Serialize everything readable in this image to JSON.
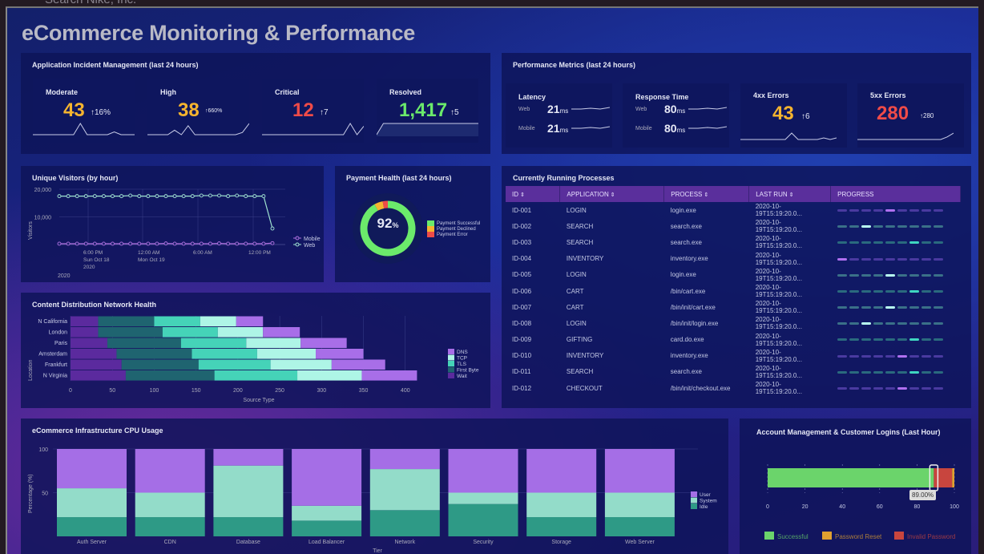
{
  "topbar": {
    "search_text": "Search Nike, Inc."
  },
  "title": "eCommerce Monitoring & Performance",
  "incidents": {
    "title": "Application Incident Management (last 24 hours)",
    "cards": [
      {
        "label": "Moderate",
        "value": "43",
        "delta": "↑16%",
        "color": "#f5b42f",
        "spark": [
          0,
          0,
          0,
          0,
          0,
          0,
          0,
          4,
          0,
          0,
          0,
          0,
          1,
          0,
          0,
          0
        ]
      },
      {
        "label": "High",
        "value": "38",
        "delta": "↑660%",
        "color": "#f5b42f",
        "spark": [
          0,
          0,
          0,
          0,
          2,
          0,
          4,
          0,
          0,
          0,
          0,
          0,
          0,
          0,
          1,
          5
        ]
      },
      {
        "label": "Critical",
        "value": "12",
        "delta": "↑7",
        "color": "#ef4b48",
        "spark": [
          0,
          0,
          0,
          0,
          0,
          0,
          0,
          0,
          0,
          0,
          0,
          0,
          0,
          4,
          0,
          3
        ]
      },
      {
        "label": "Resolved",
        "value": "1,417",
        "delta": "↑5",
        "color": "#6bea6b",
        "spark": [
          0,
          4,
          4,
          4,
          4,
          4,
          4,
          4,
          4,
          4,
          4,
          4,
          4,
          4,
          4,
          4
        ]
      }
    ]
  },
  "performance": {
    "title": "Performance Metrics (last 24 hours)",
    "latency": {
      "label": "Latency",
      "rows": [
        {
          "name": "Web",
          "value": "21",
          "unit": "ms"
        },
        {
          "name": "Mobile",
          "value": "21",
          "unit": "ms"
        }
      ]
    },
    "response": {
      "label": "Response Time",
      "rows": [
        {
          "name": "Web",
          "value": "80",
          "unit": "ms"
        },
        {
          "name": "Mobile",
          "value": "80",
          "unit": "ms"
        }
      ]
    },
    "errors": [
      {
        "label": "4xx Errors",
        "value": "43",
        "delta": "↑6",
        "color": "#f5b42f",
        "spark": [
          0,
          0,
          0,
          0,
          0,
          0,
          0,
          0,
          4,
          0,
          0,
          0,
          0,
          1,
          0,
          1
        ]
      },
      {
        "label": "5xx Errors",
        "value": "280",
        "delta": "↑280",
        "color": "#ef4b48",
        "spark": [
          0,
          0,
          0,
          0,
          0,
          0,
          0,
          0,
          0,
          0,
          0,
          0,
          0,
          0,
          2,
          5
        ]
      }
    ]
  },
  "visitors": {
    "title": "Unique Visitors (by hour)",
    "chart_data": {
      "type": "line",
      "ylabel": "Visitors",
      "ylim": [
        0,
        20000
      ],
      "yticks": [
        "20,000",
        "10,000"
      ],
      "xticks": [
        {
          "l1": "6:00 PM",
          "l2": "Sun Oct 18",
          "l3": "2020"
        },
        {
          "l1": "12:00 AM",
          "l2": "Mon Oct 19",
          "l3": ""
        },
        {
          "l1": "6:00 AM",
          "l2": "",
          "l3": ""
        },
        {
          "l1": "12:00 PM",
          "l2": "",
          "l3": ""
        }
      ],
      "year_label": "2020",
      "series": [
        {
          "name": "Mobile",
          "color": "#b070e0",
          "values": [
            300,
            300,
            300,
            300,
            300,
            300,
            300,
            300,
            300,
            300,
            300,
            300,
            400,
            300,
            300,
            300,
            300,
            300,
            400,
            300,
            300,
            300,
            300,
            300,
            500
          ]
        },
        {
          "name": "Web",
          "color": "#9fe3d0",
          "values": [
            17500,
            17500,
            17500,
            17500,
            17500,
            17500,
            17500,
            17500,
            17700,
            17500,
            17500,
            17500,
            17500,
            17500,
            17500,
            17500,
            17700,
            17700,
            17700,
            17500,
            17700,
            17500,
            17500,
            17500,
            5800
          ]
        }
      ]
    }
  },
  "payment": {
    "title": "Payment Health (last 24 hours)",
    "center": "92",
    "center_unit": "%",
    "chart_data": {
      "type": "pie",
      "slices": [
        {
          "name": "Payment Successful",
          "value": 92,
          "color": "#6bea6b"
        },
        {
          "name": "Payment Declined",
          "value": 5,
          "color": "#f5b42f"
        },
        {
          "name": "Payment Error",
          "value": 3,
          "color": "#ef4b48"
        }
      ]
    }
  },
  "cdn": {
    "title": "Content Distribution Network Health",
    "chart_data": {
      "type": "bar",
      "orientation": "horizontal",
      "stacked": true,
      "xlabel": "Source Type",
      "ylabel": "Location",
      "xlim": [
        0,
        450
      ],
      "xticks": [
        0,
        50,
        100,
        150,
        200,
        250,
        300,
        350,
        400
      ],
      "categories": [
        "N California",
        "London",
        "Paris",
        "Amsterdam",
        "Frankfurt",
        "N Virginia"
      ],
      "series": [
        {
          "name": "Wait",
          "color": "#5b2a9e",
          "values": [
            33,
            33,
            44,
            55,
            61,
            66
          ]
        },
        {
          "name": "First Byte",
          "color": "#1f6470",
          "values": [
            67,
            77,
            88,
            90,
            92,
            106
          ]
        },
        {
          "name": "TLS",
          "color": "#45d3b8",
          "values": [
            55,
            66,
            78,
            78,
            86,
            99
          ]
        },
        {
          "name": "TCP",
          "color": "#aef5e6",
          "values": [
            43,
            54,
            65,
            70,
            73,
            77
          ]
        },
        {
          "name": "DNS",
          "color": "#a86ee8",
          "values": [
            32,
            44,
            55,
            57,
            64,
            66
          ]
        }
      ],
      "legend_order": [
        "DNS",
        "TCP",
        "TLS",
        "First Byte",
        "Wait"
      ]
    }
  },
  "processes": {
    "title": "Currently Running Processes",
    "columns": [
      "ID",
      "APPLICATION",
      "PROCESS",
      "LAST RUN",
      "PROGRESS"
    ],
    "rows": [
      {
        "id": "ID-001",
        "app": "LOGIN",
        "process": "login.exe",
        "last": "2020-10-19T15:19:20.0...",
        "scheme": "purple",
        "pos": 4
      },
      {
        "id": "ID-002",
        "app": "SEARCH",
        "process": "search.exe",
        "last": "2020-10-19T15:19:20.0...",
        "scheme": "light",
        "pos": 2
      },
      {
        "id": "ID-003",
        "app": "SEARCH",
        "process": "search.exe",
        "last": "2020-10-19T15:19:20.0...",
        "scheme": "teal",
        "pos": 6
      },
      {
        "id": "ID-004",
        "app": "INVENTORY",
        "process": "inventory.exe",
        "last": "2020-10-19T15:19:20.0...",
        "scheme": "purple",
        "pos": 0
      },
      {
        "id": "ID-005",
        "app": "LOGIN",
        "process": "login.exe",
        "last": "2020-10-19T15:19:20.0...",
        "scheme": "light",
        "pos": 4
      },
      {
        "id": "ID-006",
        "app": "CART",
        "process": "/bin/cart.exe",
        "last": "2020-10-19T15:19:20.0...",
        "scheme": "teal",
        "pos": 6
      },
      {
        "id": "ID-007",
        "app": "CART",
        "process": "/bin/init/cart.exe",
        "last": "2020-10-19T15:19:20.0...",
        "scheme": "light",
        "pos": 4
      },
      {
        "id": "ID-008",
        "app": "LOGIN",
        "process": "/bin/init/login.exe",
        "last": "2020-10-19T15:19:20.0...",
        "scheme": "light",
        "pos": 2
      },
      {
        "id": "ID-009",
        "app": "GIFTING",
        "process": "card.do.exe",
        "last": "2020-10-19T15:19:20.0...",
        "scheme": "teal",
        "pos": 6
      },
      {
        "id": "ID-010",
        "app": "INVENTORY",
        "process": "inventory.exe",
        "last": "2020-10-19T15:19:20.0...",
        "scheme": "purple",
        "pos": 5
      },
      {
        "id": "ID-011",
        "app": "SEARCH",
        "process": "search.exe",
        "last": "2020-10-19T15:19:20.0...",
        "scheme": "teal",
        "pos": 6
      },
      {
        "id": "ID-012",
        "app": "CHECKOUT",
        "process": "/bin/init/checkout.exe",
        "last": "2020-10-19T15:19:20.0...",
        "scheme": "purple",
        "pos": 5
      }
    ]
  },
  "cpu": {
    "title": "eCommerce Infrastructure CPU Usage",
    "chart_data": {
      "type": "bar",
      "stacked": true,
      "xlabel": "Tier",
      "ylabel": "Percentage (%)",
      "ylim": [
        0,
        100
      ],
      "yticks": [
        100,
        50
      ],
      "categories": [
        "Auth Server",
        "CDN",
        "Database",
        "Load Balancer",
        "Network",
        "Security",
        "Storage",
        "Web Server"
      ],
      "series": [
        {
          "name": "Idle",
          "color": "#2e9a86",
          "values": [
            22,
            22,
            22,
            18,
            30,
            37,
            22,
            22
          ]
        },
        {
          "name": "System",
          "color": "#93dcc9",
          "values": [
            33,
            28,
            59,
            17,
            47,
            13,
            28,
            28
          ]
        },
        {
          "name": "User",
          "color": "#a56ee6",
          "values": [
            45,
            50,
            19,
            65,
            23,
            50,
            50,
            50
          ]
        }
      ],
      "legend_order": [
        "User",
        "System",
        "Idle"
      ]
    }
  },
  "logins": {
    "title": "Account Management & Customer Logins (Last Hour)",
    "tooltip": "89.00%",
    "chart_data": {
      "type": "bar",
      "orientation": "horizontal",
      "stacked": true,
      "xlim": [
        0,
        100
      ],
      "xticks": [
        0,
        20,
        40,
        60,
        80,
        100
      ],
      "series": [
        {
          "name": "Successful",
          "value": 89,
          "color": "#6bd46b"
        },
        {
          "name": "Invalid Password",
          "value": 9.8,
          "color": "#c8453e"
        },
        {
          "name": "Password Reset",
          "value": 1.2,
          "color": "#e0a030"
        }
      ],
      "legend_order": [
        "Successful",
        "Password Reset",
        "Invalid Password"
      ]
    }
  }
}
